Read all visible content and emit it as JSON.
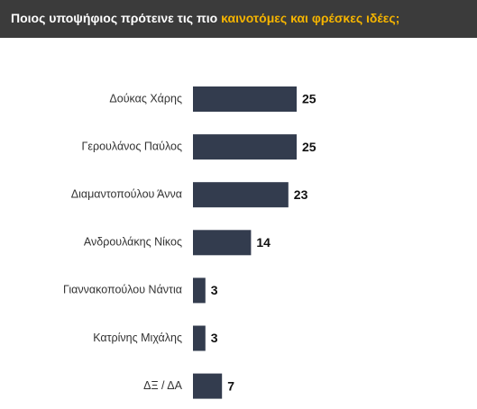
{
  "chart_data": {
    "type": "bar",
    "orientation": "horizontal",
    "title": "Ποιος υποψήφιος πρότεινε τις πιο",
    "title_highlight": "καινοτόμες και φρέσκες ιδέες;",
    "categories": [
      "Δούκας Χάρης",
      "Γερουλάνος Παύλος",
      "Διαμαντοπούλου Άννα",
      "Ανδρουλάκης Νίκος",
      "Γιαννακοπούλου Νάντια",
      "Κατρίνης Μιχάλης",
      "ΔΞ / ΔΑ"
    ],
    "values": [
      25,
      25,
      23,
      14,
      3,
      3,
      7
    ],
    "color": "#333c4e"
  }
}
